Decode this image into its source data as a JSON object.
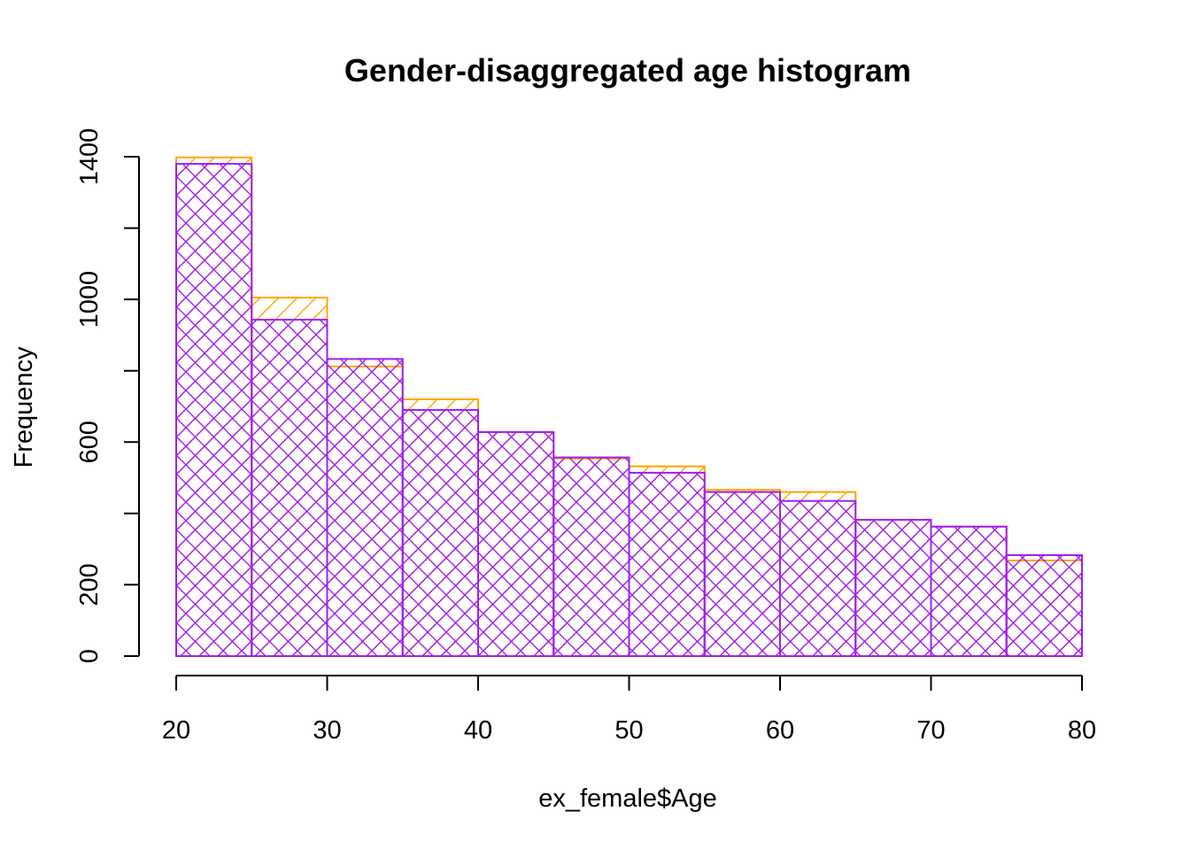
{
  "chart_data": {
    "type": "bar",
    "title": "Gender-disaggregated age histogram",
    "xlabel": "ex_female$Age",
    "ylabel": "Frequency",
    "xlim": [
      20,
      80
    ],
    "ylim": [
      0,
      1400
    ],
    "x_ticks": [
      "20",
      "30",
      "40",
      "50",
      "60",
      "70",
      "80"
    ],
    "y_ticks": [
      "0",
      "200",
      "600",
      "1000",
      "1400"
    ],
    "y_minor_ticks": [
      400,
      800,
      1200
    ],
    "bins": [
      [
        20,
        25
      ],
      [
        25,
        30
      ],
      [
        30,
        35
      ],
      [
        35,
        40
      ],
      [
        40,
        45
      ],
      [
        45,
        50
      ],
      [
        50,
        55
      ],
      [
        55,
        60
      ],
      [
        60,
        65
      ],
      [
        65,
        70
      ],
      [
        70,
        75
      ],
      [
        75,
        80
      ]
    ],
    "series": [
      {
        "color": "#FFA500",
        "hatch": "diagonal-up",
        "values": [
          1398,
          1005,
          812,
          720,
          628,
          554,
          532,
          466,
          460,
          382,
          363,
          268
        ]
      },
      {
        "color": "#A020F0",
        "hatch": "cross",
        "values": [
          1380,
          943,
          833,
          690,
          628,
          557,
          514,
          460,
          435,
          382,
          363,
          283
        ]
      }
    ],
    "grid": false,
    "legend": "none"
  }
}
